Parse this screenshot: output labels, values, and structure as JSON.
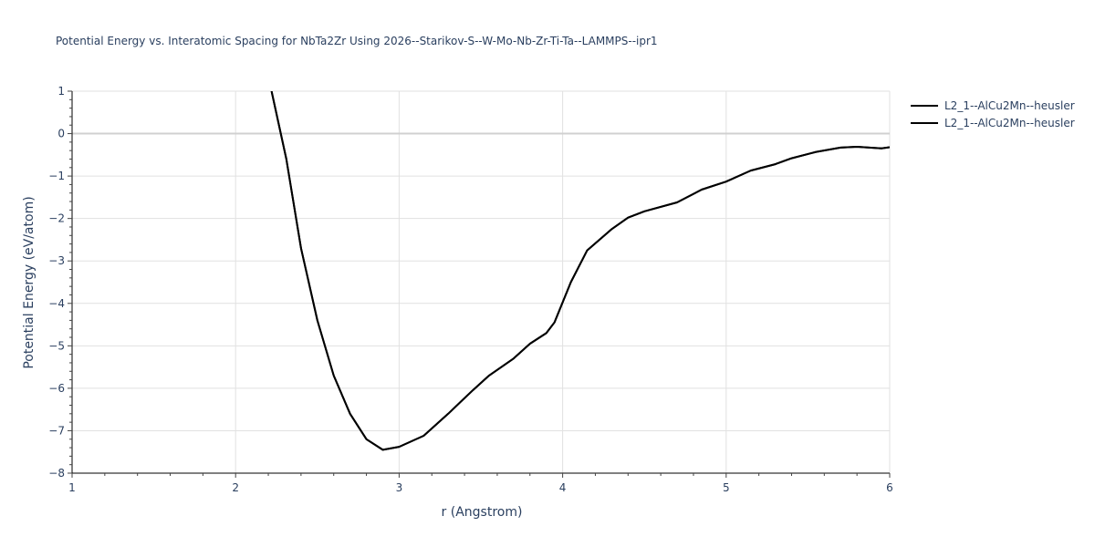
{
  "title": "Potential Energy vs. Interatomic Spacing for NbTa2Zr Using 2026--Starikov-S--W-Mo-Nb-Zr-Ti-Ta--LAMMPS--ipr1",
  "xaxis": {
    "label": "r (Angstrom)",
    "ticks": [
      "1",
      "2",
      "3",
      "4",
      "5",
      "6"
    ]
  },
  "yaxis": {
    "label": "Potential Energy (eV/atom)",
    "ticks": [
      "1",
      "0",
      "−1",
      "−2",
      "−3",
      "−4",
      "−5",
      "−6",
      "−7",
      "−8"
    ]
  },
  "legend": {
    "items": [
      {
        "label": "L2_1--AlCu2Mn--heusler",
        "color": "#000000"
      },
      {
        "label": "L2_1--AlCu2Mn--heusler",
        "color": "#000000"
      }
    ]
  },
  "chart_data": {
    "type": "line",
    "title": "Potential Energy vs. Interatomic Spacing for NbTa2Zr Using 2026--Starikov-S--W-Mo-Nb-Zr-Ti-Ta--LAMMPS--ipr1",
    "xlabel": "r (Angstrom)",
    "ylabel": "Potential Energy (eV/atom)",
    "xlim": [
      1,
      6
    ],
    "ylim": [
      -8,
      1
    ],
    "grid": true,
    "legend_position": "top-right outside",
    "series": [
      {
        "name": "L2_1--AlCu2Mn--heusler",
        "color": "#000000",
        "x": [
          2.22,
          2.31,
          2.4,
          2.5,
          2.6,
          2.7,
          2.8,
          2.9,
          3.0,
          3.15,
          3.3,
          3.45,
          3.55,
          3.7,
          3.8,
          3.9,
          3.95,
          4.05,
          4.15,
          4.3,
          4.4,
          4.5,
          4.7,
          4.85,
          5.0,
          5.15,
          5.3,
          5.4,
          5.55,
          5.7,
          5.8,
          5.95,
          6.0
        ],
        "y": [
          1.0,
          -0.6,
          -2.7,
          -4.4,
          -5.7,
          -6.6,
          -7.2,
          -7.45,
          -7.38,
          -7.12,
          -6.6,
          -6.05,
          -5.7,
          -5.3,
          -4.95,
          -4.7,
          -4.45,
          -3.5,
          -2.75,
          -2.25,
          -1.98,
          -1.83,
          -1.62,
          -1.32,
          -1.13,
          -0.87,
          -0.72,
          -0.58,
          -0.43,
          -0.33,
          -0.31,
          -0.35,
          -0.32
        ]
      },
      {
        "name": "L2_1--AlCu2Mn--heusler",
        "color": "#000000",
        "x": [
          2.22,
          2.31,
          2.4,
          2.5,
          2.6,
          2.7,
          2.8,
          2.9,
          3.0,
          3.15,
          3.3,
          3.45,
          3.55,
          3.7,
          3.8,
          3.9,
          3.95,
          4.05,
          4.15,
          4.3,
          4.4,
          4.5,
          4.7,
          4.85,
          5.0,
          5.15,
          5.3,
          5.4,
          5.55,
          5.7,
          5.8,
          5.95,
          6.0
        ],
        "y": [
          1.0,
          -0.6,
          -2.7,
          -4.4,
          -5.7,
          -6.6,
          -7.2,
          -7.45,
          -7.38,
          -7.12,
          -6.6,
          -6.05,
          -5.7,
          -5.3,
          -4.95,
          -4.7,
          -4.45,
          -3.5,
          -2.75,
          -2.25,
          -1.98,
          -1.83,
          -1.62,
          -1.32,
          -1.13,
          -0.87,
          -0.72,
          -0.58,
          -0.43,
          -0.33,
          -0.31,
          -0.35,
          -0.32
        ]
      }
    ]
  }
}
